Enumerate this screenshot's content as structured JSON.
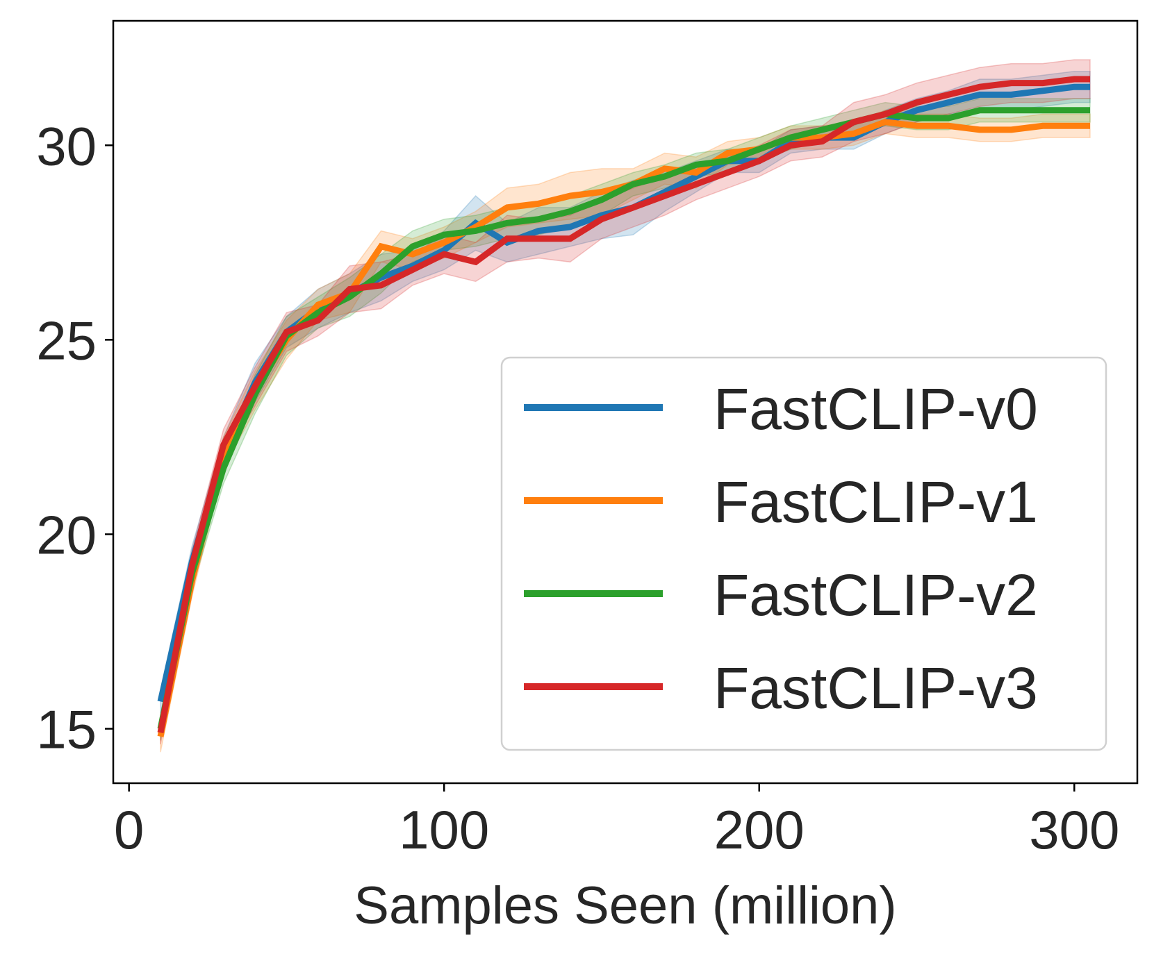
{
  "chart_data": {
    "type": "line",
    "title": "",
    "xlabel": "Samples Seen (million)",
    "ylabel": "",
    "xlim": [
      -5,
      320
    ],
    "ylim": [
      13.6,
      33.2
    ],
    "xticks": [
      0,
      100,
      200,
      300
    ],
    "yticks": [
      15,
      20,
      25,
      30
    ],
    "xtick_labels": [
      "0",
      "100",
      "200",
      "300"
    ],
    "ytick_labels": [
      "15",
      "20",
      "25",
      "30"
    ],
    "grid": false,
    "legend_position": "lower-right",
    "x": [
      10,
      20,
      30,
      40,
      50,
      60,
      70,
      80,
      90,
      100,
      110,
      120,
      130,
      140,
      150,
      160,
      170,
      180,
      190,
      200,
      210,
      220,
      230,
      240,
      250,
      260,
      270,
      280,
      290,
      300,
      305
    ],
    "series": [
      {
        "name": "FastCLIP-v0",
        "color": "#1f77b4",
        "values": [
          15.7,
          19.3,
          22.1,
          23.9,
          25.2,
          25.8,
          26.2,
          26.6,
          26.9,
          27.3,
          28.0,
          27.5,
          27.8,
          27.9,
          28.2,
          28.4,
          28.8,
          29.2,
          29.6,
          29.6,
          30.1,
          30.2,
          30.2,
          30.6,
          30.9,
          31.1,
          31.3,
          31.3,
          31.4,
          31.5,
          31.5
        ],
        "band": [
          0.3,
          0.4,
          0.4,
          0.5,
          0.4,
          0.5,
          0.5,
          0.6,
          0.4,
          0.5,
          0.7,
          0.5,
          0.6,
          0.5,
          0.6,
          0.7,
          0.5,
          0.4,
          0.3,
          0.3,
          0.3,
          0.3,
          0.3,
          0.3,
          0.3,
          0.3,
          0.4,
          0.4,
          0.4,
          0.4,
          0.4
        ]
      },
      {
        "name": "FastCLIP-v1",
        "color": "#ff7f0e",
        "values": [
          14.8,
          18.8,
          22.1,
          23.7,
          25.0,
          25.9,
          26.2,
          27.4,
          27.2,
          27.5,
          27.9,
          28.4,
          28.5,
          28.7,
          28.8,
          29.0,
          29.4,
          29.3,
          29.8,
          29.9,
          30.2,
          30.2,
          30.3,
          30.6,
          30.5,
          30.5,
          30.4,
          30.4,
          30.5,
          30.5,
          30.5
        ],
        "band": [
          0.4,
          0.4,
          0.4,
          0.5,
          0.5,
          0.4,
          0.5,
          0.4,
          0.4,
          0.4,
          0.4,
          0.5,
          0.5,
          0.6,
          0.6,
          0.4,
          0.4,
          0.4,
          0.3,
          0.3,
          0.3,
          0.3,
          0.3,
          0.3,
          0.3,
          0.3,
          0.3,
          0.3,
          0.3,
          0.3,
          0.3
        ]
      },
      {
        "name": "FastCLIP-v2",
        "color": "#2ca02c",
        "values": [
          15.0,
          19.0,
          21.7,
          23.6,
          25.1,
          25.7,
          26.1,
          26.7,
          27.4,
          27.7,
          27.8,
          28.0,
          28.1,
          28.3,
          28.6,
          29.0,
          29.2,
          29.5,
          29.6,
          29.9,
          30.2,
          30.4,
          30.6,
          30.8,
          30.7,
          30.7,
          30.9,
          30.9,
          30.9,
          30.9,
          30.9
        ],
        "band": [
          0.3,
          0.4,
          0.4,
          0.5,
          0.5,
          0.4,
          0.5,
          0.5,
          0.4,
          0.4,
          0.4,
          0.4,
          0.4,
          0.4,
          0.4,
          0.3,
          0.3,
          0.3,
          0.3,
          0.3,
          0.3,
          0.3,
          0.3,
          0.3,
          0.3,
          0.3,
          0.3,
          0.3,
          0.3,
          0.3,
          0.3
        ]
      },
      {
        "name": "FastCLIP-v3",
        "color": "#d62728",
        "values": [
          14.9,
          19.2,
          22.3,
          23.8,
          25.2,
          25.5,
          26.3,
          26.4,
          26.8,
          27.2,
          27.0,
          27.6,
          27.6,
          27.6,
          28.1,
          28.4,
          28.7,
          29.0,
          29.3,
          29.6,
          30.0,
          30.1,
          30.6,
          30.8,
          31.1,
          31.3,
          31.5,
          31.6,
          31.6,
          31.7,
          31.7
        ],
        "band": [
          0.3,
          0.4,
          0.4,
          0.5,
          0.5,
          0.4,
          0.6,
          0.6,
          0.4,
          0.5,
          0.5,
          0.6,
          0.5,
          0.6,
          0.5,
          0.5,
          0.5,
          0.4,
          0.4,
          0.4,
          0.4,
          0.4,
          0.5,
          0.5,
          0.5,
          0.5,
          0.5,
          0.5,
          0.5,
          0.5,
          0.5
        ]
      }
    ]
  }
}
